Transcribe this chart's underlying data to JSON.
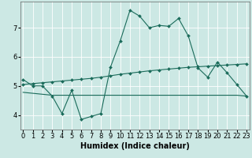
{
  "xlabel": "Humidex (Indice chaleur)",
  "background_color": "#cce8e4",
  "line_color": "#1a6b5a",
  "grid_color": "#ffffff",
  "x_ticks": [
    0,
    1,
    2,
    3,
    4,
    5,
    6,
    7,
    8,
    9,
    10,
    11,
    12,
    13,
    14,
    15,
    16,
    17,
    18,
    19,
    20,
    21,
    22,
    23
  ],
  "y_ticks": [
    4,
    5,
    6,
    7
  ],
  "ylim": [
    3.5,
    7.9
  ],
  "xlim": [
    -0.3,
    23.3
  ],
  "line1_x": [
    0,
    1,
    2,
    3,
    4,
    5,
    6,
    7,
    8,
    9,
    10,
    11,
    12,
    13,
    14,
    15,
    16,
    17,
    18,
    19,
    20,
    21,
    22,
    23
  ],
  "line1_y": [
    5.22,
    5.0,
    5.0,
    4.65,
    4.05,
    4.85,
    3.85,
    3.95,
    4.05,
    5.65,
    6.55,
    7.6,
    7.4,
    7.0,
    7.08,
    7.05,
    7.32,
    6.72,
    5.62,
    5.3,
    5.82,
    5.45,
    5.05,
    4.65
  ],
  "line2_x": [
    0,
    1,
    2,
    3,
    4,
    5,
    6,
    7,
    8,
    9,
    10,
    11,
    12,
    13,
    14,
    15,
    16,
    17,
    18,
    19,
    20,
    21,
    22,
    23
  ],
  "line2_y": [
    5.05,
    5.08,
    5.11,
    5.14,
    5.17,
    5.2,
    5.23,
    5.26,
    5.3,
    5.35,
    5.4,
    5.44,
    5.48,
    5.52,
    5.55,
    5.58,
    5.61,
    5.64,
    5.66,
    5.68,
    5.7,
    5.72,
    5.74,
    5.76
  ],
  "line3_x": [
    0,
    3,
    9,
    19,
    22,
    23
  ],
  "line3_y": [
    4.78,
    4.68,
    4.68,
    4.68,
    4.68,
    4.65
  ],
  "font_size_xlabel": 7,
  "tick_fontsize": 6,
  "marker_size": 2.0,
  "linewidth": 0.8
}
